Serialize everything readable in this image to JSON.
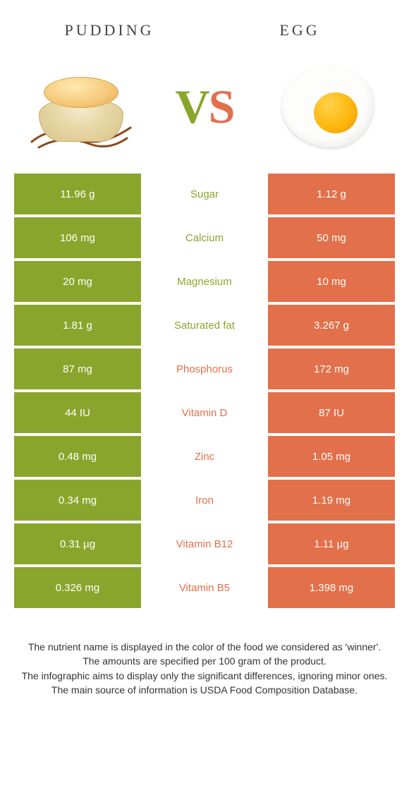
{
  "title_left": "PUDDING",
  "title_right": "EGG",
  "vs": {
    "v": "V",
    "s": "S"
  },
  "colors": {
    "green": "#8aa52c",
    "orange": "#e2704a"
  },
  "rows": [
    {
      "left": "11.96 g",
      "label": "Sugar",
      "right": "1.12 g",
      "winner": "green"
    },
    {
      "left": "106 mg",
      "label": "Calcium",
      "right": "50 mg",
      "winner": "green"
    },
    {
      "left": "20 mg",
      "label": "Magnesium",
      "right": "10 mg",
      "winner": "green"
    },
    {
      "left": "1.81 g",
      "label": "Saturated fat",
      "right": "3.267 g",
      "winner": "green"
    },
    {
      "left": "87 mg",
      "label": "Phosphorus",
      "right": "172 mg",
      "winner": "orange"
    },
    {
      "left": "44 IU",
      "label": "Vitamin D",
      "right": "87 IU",
      "winner": "orange"
    },
    {
      "left": "0.48 mg",
      "label": "Zinc",
      "right": "1.05 mg",
      "winner": "orange"
    },
    {
      "left": "0.34 mg",
      "label": "Iron",
      "right": "1.19 mg",
      "winner": "orange"
    },
    {
      "left": "0.31 µg",
      "label": "Vitamin B12",
      "right": "1.11 µg",
      "winner": "orange"
    },
    {
      "left": "0.326 mg",
      "label": "Vitamin B5",
      "right": "1.398 mg",
      "winner": "orange"
    }
  ],
  "notes": [
    "The nutrient name is displayed in the color of the food we considered as 'winner'.",
    "The amounts are specified per 100 gram of the product.",
    "The infographic aims to display only the significant differences, ignoring minor ones.",
    "The main source of information is USDA Food Composition Database."
  ]
}
